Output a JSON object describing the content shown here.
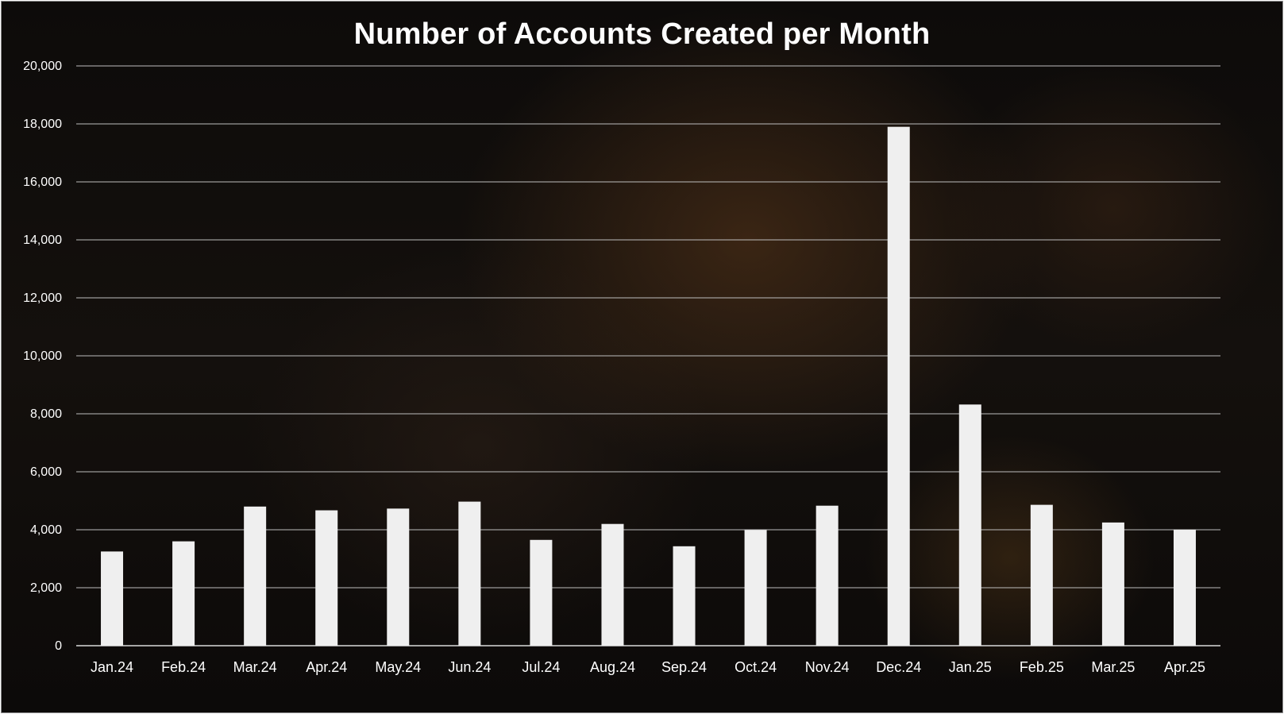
{
  "chart_data": {
    "type": "bar",
    "title": "Number of Accounts Created per Month",
    "categories": [
      "Jan.24",
      "Feb.24",
      "Mar.24",
      "Apr.24",
      "May.24",
      "Jun.24",
      "Jul.24",
      "Aug.24",
      "Sep.24",
      "Oct.24",
      "Nov.24",
      "Dec.24",
      "Jan.25",
      "Feb.25",
      "Mar.25",
      "Apr.25"
    ],
    "values": [
      3250,
      3600,
      4800,
      4670,
      4730,
      4970,
      3650,
      4200,
      3430,
      3990,
      4830,
      17900,
      8320,
      4860,
      4250,
      4000
    ],
    "ylim": [
      0,
      20000
    ],
    "yticks": [
      "0",
      "2,000",
      "4,000",
      "6,000",
      "8,000",
      "10,000",
      "12,000",
      "14,000",
      "16,000",
      "18,000",
      "20,000"
    ],
    "xlabel": "",
    "ylabel": "",
    "grid": true,
    "legend": "none",
    "colors": {
      "bar": "#efefef",
      "grid": "#bdbdbd",
      "axis": "#d9d9d9",
      "text": "#ffffff"
    }
  }
}
